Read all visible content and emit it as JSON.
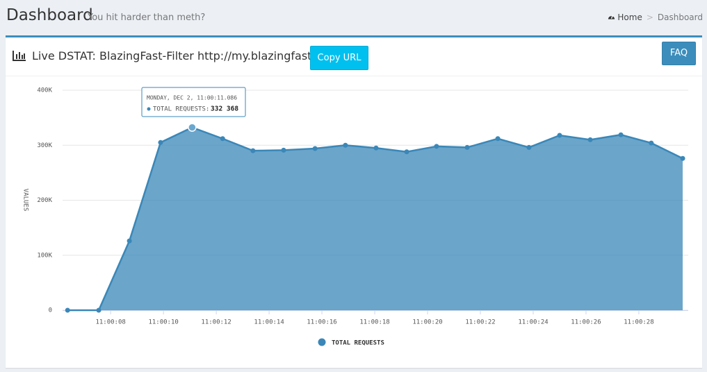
{
  "header": {
    "title": "Dashboard",
    "subtitle": "You hit harder than meth?",
    "breadcrumb": [
      "Home",
      "Dashboard"
    ]
  },
  "panel": {
    "title": "Live DSTAT: BlazingFast-Filter http://my.blazingfast.io",
    "copy_button": "Copy URL",
    "faq_button": "FAQ"
  },
  "chart_data": {
    "type": "area",
    "x": [
      6.37,
      7.55,
      8.71,
      9.89,
      11.086,
      12.24,
      13.39,
      14.55,
      15.74,
      16.89,
      18.05,
      19.21,
      20.34,
      21.5,
      22.66,
      23.84,
      25.0,
      26.16,
      27.32,
      28.47,
      29.66
    ],
    "xlim": [
      6.18,
      29.87
    ],
    "xticks": [
      {
        "value": 8,
        "label": "11:00:08"
      },
      {
        "value": 10,
        "label": "11:00:10"
      },
      {
        "value": 12,
        "label": "11:00:12"
      },
      {
        "value": 14,
        "label": "11:00:14"
      },
      {
        "value": 16,
        "label": "11:00:16"
      },
      {
        "value": 18,
        "label": "11:00:18"
      },
      {
        "value": 20,
        "label": "11:00:20"
      },
      {
        "value": 22,
        "label": "11:00:22"
      },
      {
        "value": 24,
        "label": "11:00:24"
      },
      {
        "value": 26,
        "label": "11:00:26"
      },
      {
        "value": 28,
        "label": "11:00:28"
      }
    ],
    "ylim": [
      0,
      400000
    ],
    "yticks": [
      0,
      {
        "value": 100000,
        "label": "100K"
      },
      {
        "value": 200000,
        "label": "200K"
      },
      {
        "value": 300000,
        "label": "300K"
      },
      {
        "value": 400000,
        "label": "400K"
      }
    ],
    "y_label": "Values",
    "grid": true,
    "legend": "bottom",
    "series": [
      {
        "name": "Total requests",
        "color": "#3a87b8",
        "values": [
          0,
          0,
          126000,
          305000,
          332368,
          312000,
          290000,
          291000,
          294000,
          300000,
          295000,
          288000,
          298000,
          296000,
          312000,
          296000,
          318000,
          310000,
          319000,
          304000,
          276000
        ],
        "value_labels": [
          null,
          null,
          null,
          null,
          "332 368",
          null,
          null,
          null,
          null,
          null,
          null,
          null,
          null,
          null,
          null,
          null,
          null,
          null,
          null,
          null,
          null
        ]
      }
    ],
    "tooltip": {
      "title": "Monday, Dec 2, 11:00:11.086",
      "label": "Total requests:",
      "index": 4
    }
  }
}
